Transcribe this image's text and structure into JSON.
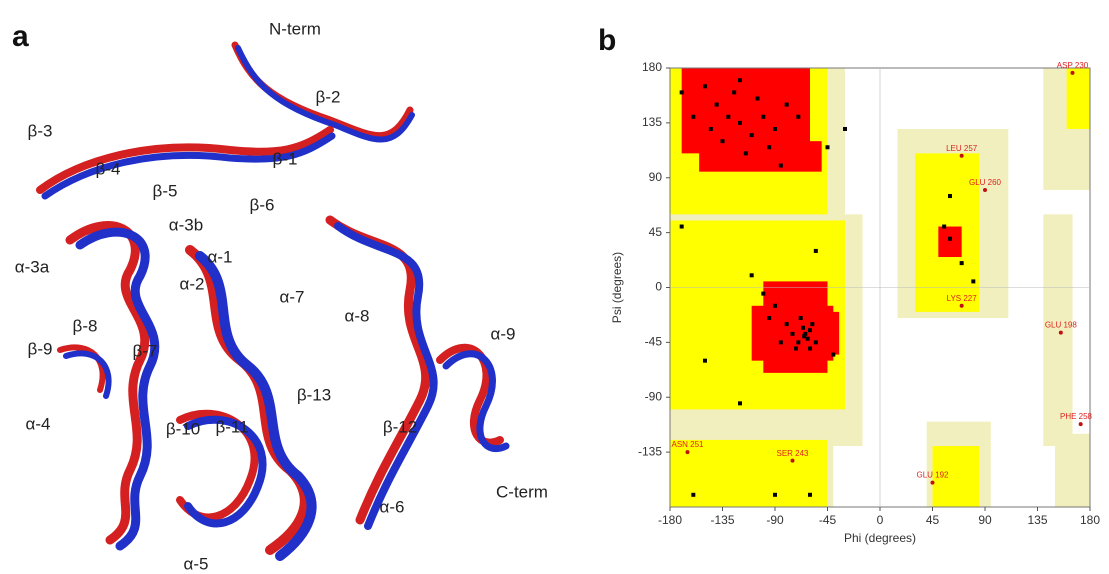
{
  "panels": [
    {
      "letter": "a",
      "labels": [
        "N-term",
        "β-2",
        "β-3",
        "β-1",
        "β-4",
        "β-5",
        "β-6",
        "α-3b",
        "α-3a",
        "α-1",
        "α-2",
        "α-7",
        "α-8",
        "α-9",
        "β-8",
        "β-9",
        "β-7",
        "β-13",
        "β-10",
        "β-11",
        "β-12",
        "α-4",
        "α-6",
        "C-term",
        "α-5"
      ]
    },
    {
      "letter": "b"
    }
  ],
  "chart_data": {
    "type": "scatter",
    "x_label": "Phi (degrees)",
    "y_label": "Psi (degrees)",
    "xlim": [
      -180,
      180
    ],
    "ylim": [
      -180,
      180
    ],
    "xticks": [
      -180,
      -135,
      -90,
      -45,
      0,
      45,
      90,
      135,
      180
    ],
    "yticks": [
      180,
      135,
      90,
      45,
      0,
      -45,
      -90,
      -135
    ],
    "series": [
      {
        "color": "#000000",
        "x": [
          -150,
          -140,
          -130,
          -120,
          -110,
          -100,
          -125,
          -90,
          -115,
          -135,
          -80,
          -105,
          -145,
          -95,
          -160,
          -70,
          -120,
          -85,
          -65,
          -60,
          -70,
          -62,
          -58,
          -75,
          -68,
          -55,
          -80,
          -90,
          -100,
          -72,
          -64,
          -85,
          -60,
          -95,
          -110,
          -66,
          -170,
          -160,
          -150,
          -120,
          -60,
          -90,
          -45,
          -30,
          -40,
          -55,
          60,
          55,
          70,
          80,
          60,
          -170
        ],
        "y": [
          165,
          150,
          140,
          135,
          125,
          140,
          160,
          130,
          110,
          120,
          150,
          155,
          130,
          115,
          140,
          140,
          170,
          100,
          -40,
          -35,
          -45,
          -42,
          -30,
          -38,
          -25,
          -45,
          -30,
          -15,
          -5,
          -50,
          -38,
          -45,
          -50,
          -25,
          10,
          -33,
          160,
          -170,
          -60,
          -95,
          -170,
          -170,
          115,
          130,
          -55,
          30,
          40,
          50,
          20,
          5,
          75,
          50
        ]
      }
    ],
    "annotations": [
      {
        "label": "ASP 230",
        "x": 165,
        "y": 176
      },
      {
        "label": "LEU 257",
        "x": 70,
        "y": 108
      },
      {
        "label": "GLU 260",
        "x": 90,
        "y": 80
      },
      {
        "label": "LYS 227",
        "x": 70,
        "y": -15
      },
      {
        "label": "GLU 198",
        "x": 155,
        "y": -37
      },
      {
        "label": "PHE 258",
        "x": 172,
        "y": -112
      },
      {
        "label": "ASN 251",
        "x": -165,
        "y": -135
      },
      {
        "label": "SER 243",
        "x": -75,
        "y": -142
      },
      {
        "label": "GLU 192",
        "x": 45,
        "y": -160
      }
    ]
  }
}
